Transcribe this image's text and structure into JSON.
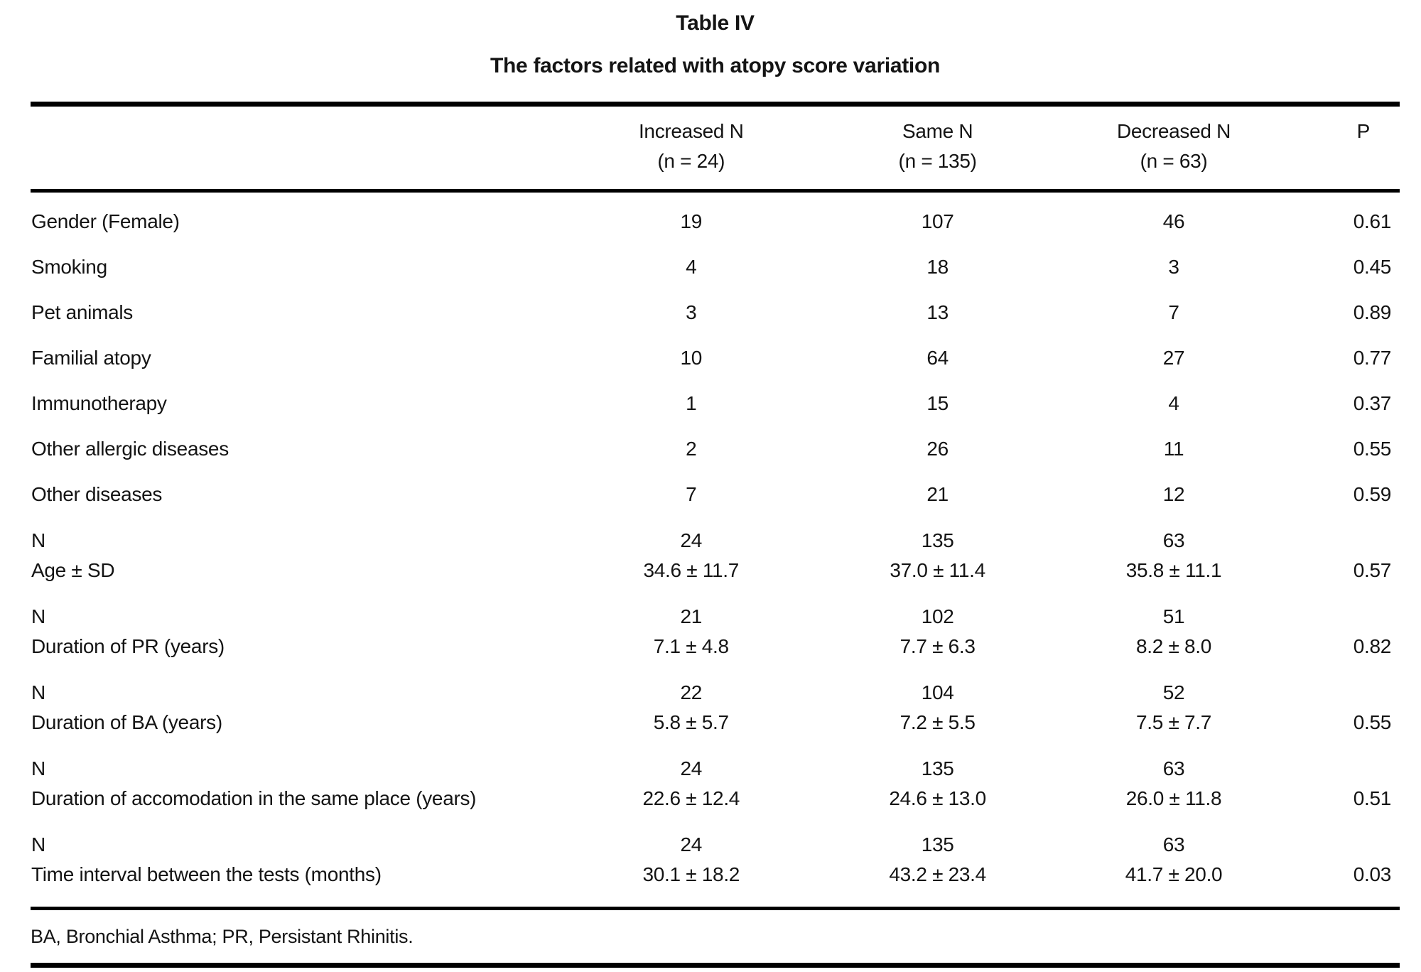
{
  "page": {
    "title": "Table IV",
    "subtitle": "The factors related with atopy score variation",
    "footnote": "BA, Bronchial Asthma; PR, Persistant Rhinitis."
  },
  "table": {
    "columns": [
      {
        "title": "Increased N",
        "sub": "(n = 24)"
      },
      {
        "title": "Same N",
        "sub": "(n = 135)"
      },
      {
        "title": "Decreased N",
        "sub": "(n = 63)"
      },
      {
        "title": "P",
        "sub": ""
      }
    ],
    "rows": [
      {
        "label": "Gender (Female)",
        "increased": "19",
        "same": "107",
        "decreased": "46",
        "p": "0.61"
      },
      {
        "label": "Smoking",
        "increased": "4",
        "same": "18",
        "decreased": "3",
        "p": "0.45"
      },
      {
        "label": "Pet animals",
        "increased": "3",
        "same": "13",
        "decreased": "7",
        "p": "0.89"
      },
      {
        "label": "Familial atopy",
        "increased": "10",
        "same": "64",
        "decreased": "27",
        "p": "0.77"
      },
      {
        "label": "Immunotherapy",
        "increased": "1",
        "same": "15",
        "decreased": "4",
        "p": "0.37"
      },
      {
        "label": "Other allergic diseases",
        "increased": "2",
        "same": "26",
        "decreased": "11",
        "p": "0.55"
      },
      {
        "label": "Other diseases",
        "increased": "7",
        "same": "21",
        "decreased": "12",
        "p": "0.59"
      },
      {
        "label": [
          "N",
          "Age ± SD"
        ],
        "increased": [
          "24",
          "34.6 ± 11.7"
        ],
        "same": [
          "135",
          "37.0 ± 11.4"
        ],
        "decreased": [
          "63",
          "35.8 ± 11.1"
        ],
        "p": "0.57"
      },
      {
        "label": [
          "N",
          "Duration of PR (years)"
        ],
        "increased": [
          "21",
          "7.1 ± 4.8"
        ],
        "same": [
          "102",
          "7.7 ± 6.3"
        ],
        "decreased": [
          "51",
          "8.2 ± 8.0"
        ],
        "p": "0.82"
      },
      {
        "label": [
          "N",
          "Duration of BA (years)"
        ],
        "increased": [
          "22",
          "5.8 ± 5.7"
        ],
        "same": [
          "104",
          "7.2 ± 5.5"
        ],
        "decreased": [
          "52",
          "7.5 ± 7.7"
        ],
        "p": "0.55"
      },
      {
        "label": [
          "N",
          "Duration of accomodation in the same place (years)"
        ],
        "increased": [
          "24",
          "22.6 ± 12.4"
        ],
        "same": [
          "135",
          "24.6 ± 13.0"
        ],
        "decreased": [
          "63",
          "26.0 ± 11.8"
        ],
        "p": "0.51"
      },
      {
        "label": [
          "N",
          "Time interval between the tests (months)"
        ],
        "increased": [
          "24",
          "30.1 ± 18.2"
        ],
        "same": [
          "135",
          "43.2 ± 23.4"
        ],
        "decreased": [
          "63",
          "41.7 ± 20.0"
        ],
        "p": "0.03"
      }
    ]
  }
}
